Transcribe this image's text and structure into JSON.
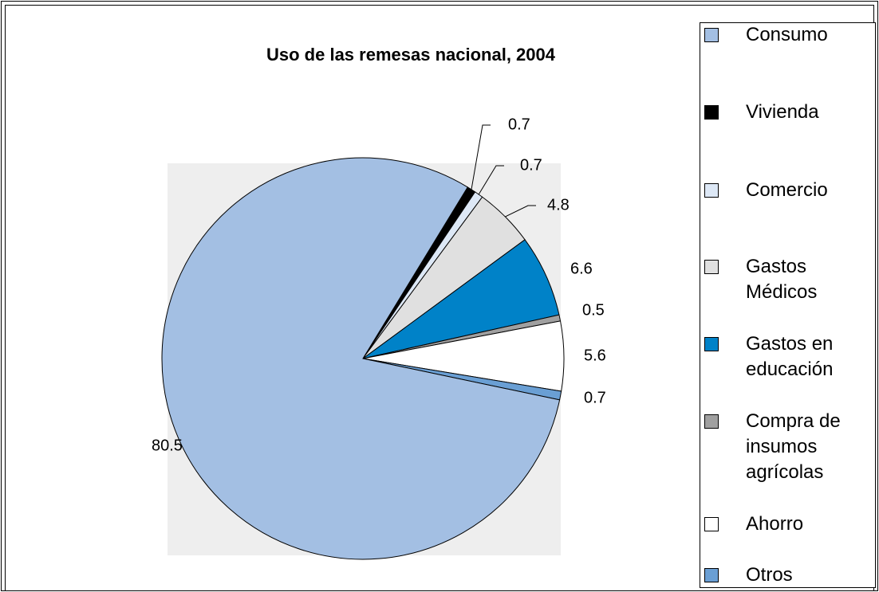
{
  "chart_data": {
    "type": "pie",
    "title": "Uso de las remesas nacional, 2004",
    "categories": [
      "Consumo",
      "Vivienda",
      "Comercio",
      "Gastos Médicos",
      "Gastos en educación",
      "Compra de insumos agrícolas",
      "Ahorro",
      "Otros"
    ],
    "values": [
      80.5,
      0.7,
      0.7,
      4.8,
      6.6,
      0.5,
      5.6,
      0.7
    ],
    "colors": [
      "#a3bfe3",
      "#000000",
      "#dde8f6",
      "#e0e0e0",
      "#0082c8",
      "#a0a0a0",
      "#ffffff",
      "#6a9fd4"
    ],
    "legend": "right"
  }
}
